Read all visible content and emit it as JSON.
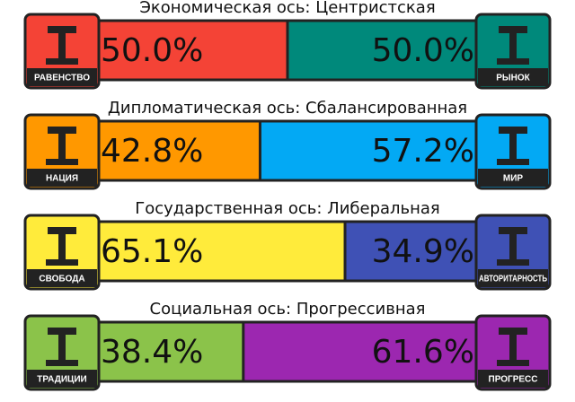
{
  "chart_data": [
    {
      "type": "bar",
      "title": "Экономическая ось: Центристская",
      "series": [
        {
          "name": "РАВЕНСТВО",
          "color": "#f44336",
          "values": [
            50.0
          ],
          "value_labels": [
            "50.0%"
          ]
        },
        {
          "name": "РЫНОК",
          "color": "#00897b",
          "values": [
            50.0
          ],
          "value_labels": [
            "50.0%"
          ]
        }
      ]
    },
    {
      "type": "bar",
      "title": "Дипломатическая ось: Сбалансированная",
      "series": [
        {
          "name": "НАЦИЯ",
          "color": "#ff9800",
          "values": [
            42.8
          ],
          "value_labels": [
            "42.8%"
          ]
        },
        {
          "name": "МИР",
          "color": "#03a9f4",
          "values": [
            57.2
          ],
          "value_labels": [
            "57.2%"
          ]
        }
      ]
    },
    {
      "type": "bar",
      "title": "Государственная ось: Либеральная",
      "series": [
        {
          "name": "СВОБОДА",
          "color": "#ffeb3b",
          "values": [
            65.1
          ],
          "value_labels": [
            "65.1%"
          ]
        },
        {
          "name": "АВТОРИТАРНОСТЬ",
          "color": "#3f51b5",
          "values": [
            34.9
          ],
          "value_labels": [
            "34.9%"
          ]
        }
      ]
    },
    {
      "type": "bar",
      "title": "Социальная ось: Прогрессивная",
      "series": [
        {
          "name": "ТРАДИЦИИ",
          "color": "#8bc34a",
          "values": [
            38.4
          ],
          "value_labels": [
            "38.4%"
          ]
        },
        {
          "name": "ПРОГРЕСС",
          "color": "#9c27b0",
          "values": [
            61.6
          ],
          "value_labels": [
            "61.6%"
          ]
        }
      ]
    }
  ]
}
